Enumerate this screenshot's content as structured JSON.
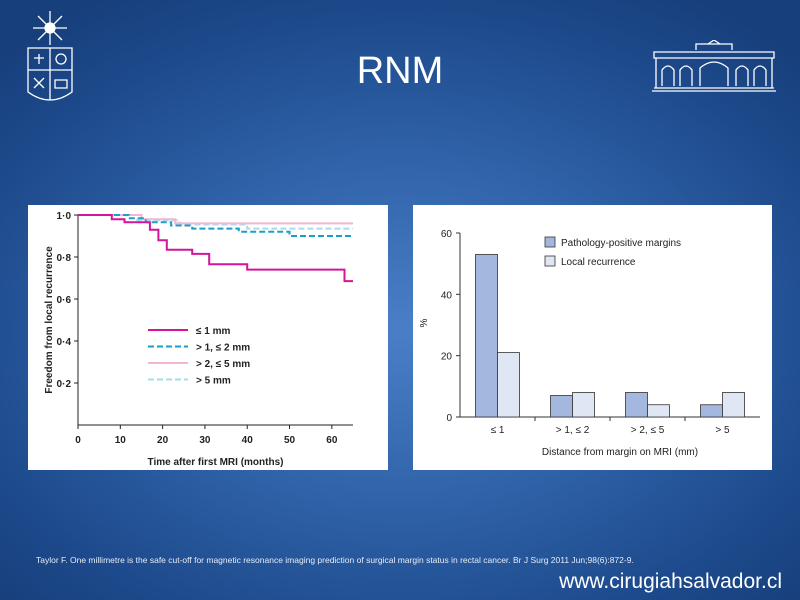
{
  "slide": {
    "title": "RNM",
    "citation": "Taylor F.  One millimetre is the safe cut-off for magnetic resonance imaging prediction of surgical margin status in rectal cancer. Br J Surg 2011 Jun;98(6):872-9.",
    "website": "www.cirugiahsalvador.cl",
    "text_color": "#ffffff"
  },
  "chart_data": [
    {
      "type": "line",
      "xlabel": "Time after first MRI (months)",
      "ylabel": "Freedom from local recurrence",
      "xlim": [
        0,
        65
      ],
      "ylim": [
        0,
        1.0
      ],
      "x_ticks": [
        0,
        10,
        20,
        30,
        40,
        50,
        60
      ],
      "y_ticks": [
        0.2,
        0.4,
        0.6,
        0.8,
        1.0
      ],
      "y_tick_labels": [
        "0·2",
        "0·4",
        "0·6",
        "0·8",
        "1·0"
      ],
      "legend_position": "center",
      "grid": false,
      "series": [
        {
          "name": "≤ 1 mm",
          "color": "#d4149b",
          "dash": "solid",
          "points": [
            [
              0,
              1.0
            ],
            [
              8,
              1.0
            ],
            [
              8,
              0.98
            ],
            [
              11,
              0.98
            ],
            [
              11,
              0.965
            ],
            [
              17,
              0.965
            ],
            [
              17,
              0.93
            ],
            [
              19,
              0.93
            ],
            [
              19,
              0.88
            ],
            [
              21,
              0.88
            ],
            [
              21,
              0.835
            ],
            [
              27,
              0.835
            ],
            [
              27,
              0.815
            ],
            [
              31,
              0.815
            ],
            [
              31,
              0.765
            ],
            [
              40,
              0.765
            ],
            [
              40,
              0.74
            ],
            [
              63,
              0.74
            ],
            [
              63,
              0.685
            ],
            [
              65,
              0.685
            ]
          ]
        },
        {
          "name": "> 1, ≤ 2 mm",
          "color": "#1a9fc9",
          "dash": "dashed",
          "points": [
            [
              0,
              1.0
            ],
            [
              12,
              1.0
            ],
            [
              12,
              0.985
            ],
            [
              16,
              0.985
            ],
            [
              16,
              0.965
            ],
            [
              22,
              0.965
            ],
            [
              22,
              0.95
            ],
            [
              27,
              0.95
            ],
            [
              27,
              0.935
            ],
            [
              38,
              0.935
            ],
            [
              38,
              0.92
            ],
            [
              50,
              0.92
            ],
            [
              50,
              0.9
            ],
            [
              65,
              0.9
            ]
          ]
        },
        {
          "name": "> 2, ≤ 5 mm",
          "color": "#f4b4d4",
          "dash": "solid",
          "points": [
            [
              0,
              1.0
            ],
            [
              15,
              1.0
            ],
            [
              15,
              0.98
            ],
            [
              23,
              0.98
            ],
            [
              23,
              0.96
            ],
            [
              65,
              0.96
            ]
          ]
        },
        {
          "name": "> 5 mm",
          "color": "#a5dde9",
          "dash": "dashed",
          "points": [
            [
              0,
              1.0
            ],
            [
              14,
              1.0
            ],
            [
              14,
              0.975
            ],
            [
              24,
              0.975
            ],
            [
              24,
              0.955
            ],
            [
              40,
              0.955
            ],
            [
              40,
              0.935
            ],
            [
              65,
              0.935
            ]
          ]
        }
      ]
    },
    {
      "type": "bar",
      "xlabel": "Distance from margin on MRI (mm)",
      "ylabel": "%",
      "ylim": [
        0,
        60
      ],
      "y_ticks": [
        0,
        20,
        40,
        60
      ],
      "categories": [
        "≤ 1",
        "> 1, ≤ 2",
        "> 2, ≤ 5",
        "> 5"
      ],
      "legend_position": "top-right",
      "grid": false,
      "series": [
        {
          "name": "Pathology-positive margins",
          "color": "#a4b7df",
          "values": [
            53,
            7,
            8,
            4
          ]
        },
        {
          "name": "Local recurrence",
          "color": "#dfe6f4",
          "values": [
            21,
            8,
            4,
            8
          ]
        }
      ]
    }
  ]
}
